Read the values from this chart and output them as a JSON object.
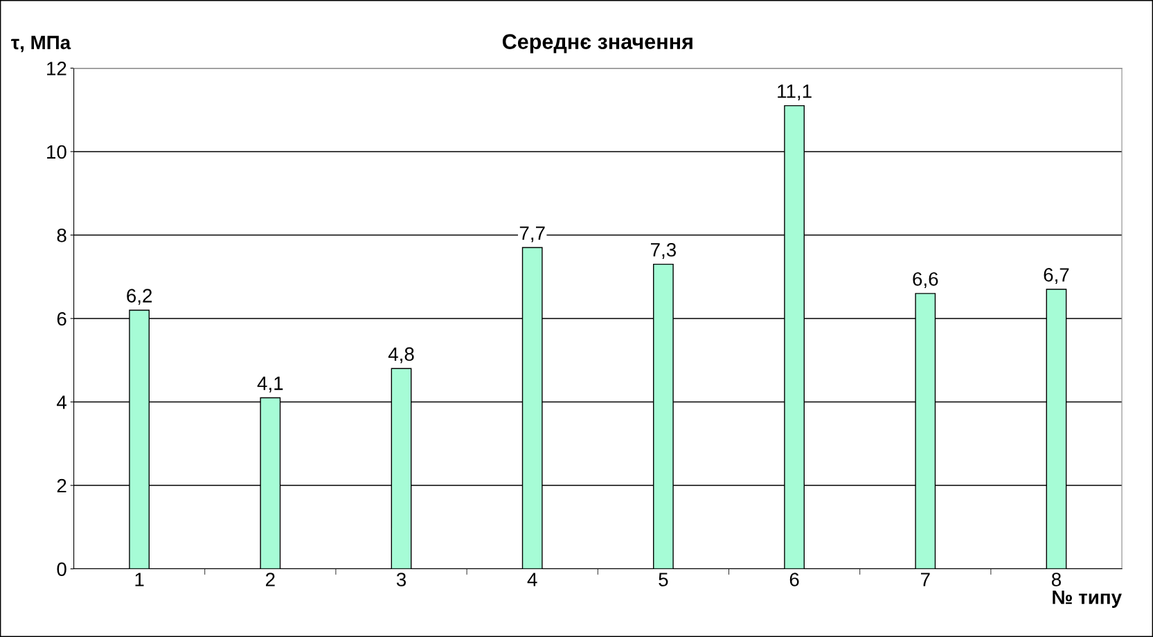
{
  "chart_data": {
    "type": "bar",
    "title": "Середнє значення",
    "xlabel": "№ типу",
    "ylabel": "τ, МПа",
    "categories": [
      "1",
      "2",
      "3",
      "4",
      "5",
      "6",
      "7",
      "8"
    ],
    "values": [
      6.2,
      4.1,
      4.8,
      7.7,
      7.3,
      11.1,
      6.6,
      6.7
    ],
    "value_labels": [
      "6,2",
      "4,1",
      "4,8",
      "7,7",
      "7,3",
      "11,1",
      "6,6",
      "6,7"
    ],
    "color": "#a6fcd6",
    "ylim": [
      0,
      12
    ],
    "yticks": [
      0,
      2,
      4,
      6,
      8,
      10,
      12
    ],
    "grid": "y",
    "legend": false
  }
}
